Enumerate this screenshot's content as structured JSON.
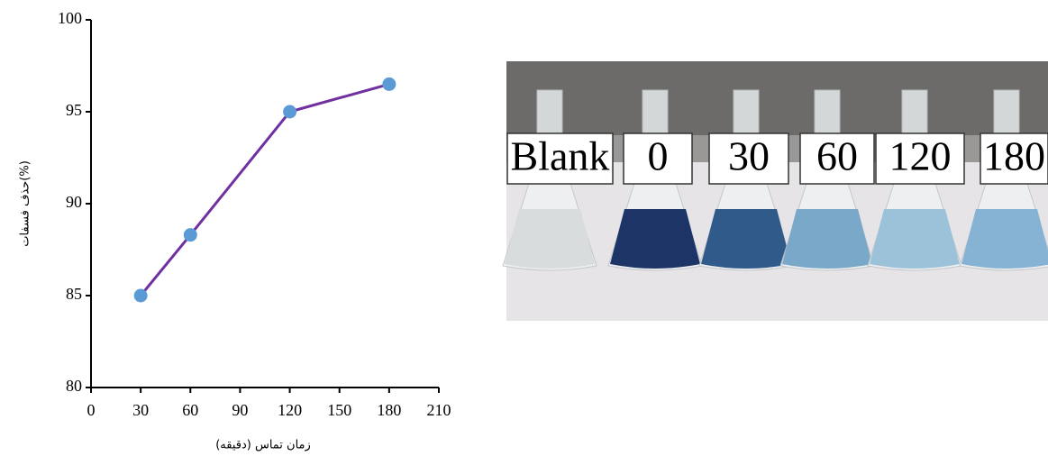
{
  "chart_data": {
    "type": "line",
    "x": [
      30,
      60,
      120,
      180
    ],
    "values": [
      85,
      88.3,
      95,
      96.5
    ],
    "color": "#7030a0",
    "marker_color": "#5b9bd5",
    "xlabel": "زمان تماس (دقیقه)",
    "ylabel": "حذف فسفات(%)",
    "xlim": [
      0,
      210
    ],
    "xticks": [
      0,
      30,
      60,
      90,
      120,
      150,
      180,
      210
    ],
    "ylim": [
      80,
      100
    ],
    "yticks": [
      80,
      85,
      90,
      95,
      100
    ],
    "grid": false
  },
  "photo": {
    "labels": [
      "Blank",
      "0",
      "30",
      "60",
      "120",
      "180"
    ]
  }
}
